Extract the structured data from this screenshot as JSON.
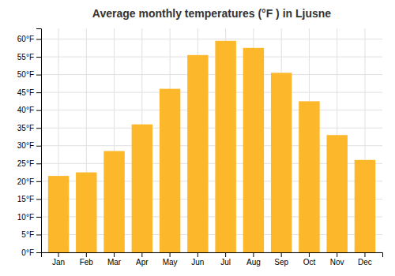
{
  "chart_data": {
    "type": "bar",
    "title": "Average monthly temperatures (°F ) in Ljusne",
    "categories": [
      "Jan",
      "Feb",
      "Mar",
      "Apr",
      "May",
      "Jun",
      "Jul",
      "Aug",
      "Sep",
      "Oct",
      "Nov",
      "Dec"
    ],
    "values": [
      21.5,
      22.5,
      28.5,
      36.0,
      46.0,
      55.5,
      59.5,
      57.5,
      50.5,
      42.5,
      33.0,
      26.0
    ],
    "color": "#FDB72A",
    "ylim": [
      0,
      63
    ],
    "yticks": [
      {
        "value": 0,
        "label": "0°F"
      },
      {
        "value": 5,
        "label": "5°F"
      },
      {
        "value": 10,
        "label": "10°F"
      },
      {
        "value": 15,
        "label": "15°F"
      },
      {
        "value": 20,
        "label": "20°F"
      },
      {
        "value": 25,
        "label": "25°F"
      },
      {
        "value": 30,
        "label": "30°F"
      },
      {
        "value": 35,
        "label": "35°F"
      },
      {
        "value": 40,
        "label": "40°F"
      },
      {
        "value": 45,
        "label": "45°F"
      },
      {
        "value": 50,
        "label": "50°F"
      },
      {
        "value": 55,
        "label": "55°F"
      },
      {
        "value": 60,
        "label": "60°F"
      }
    ],
    "grid": true
  }
}
